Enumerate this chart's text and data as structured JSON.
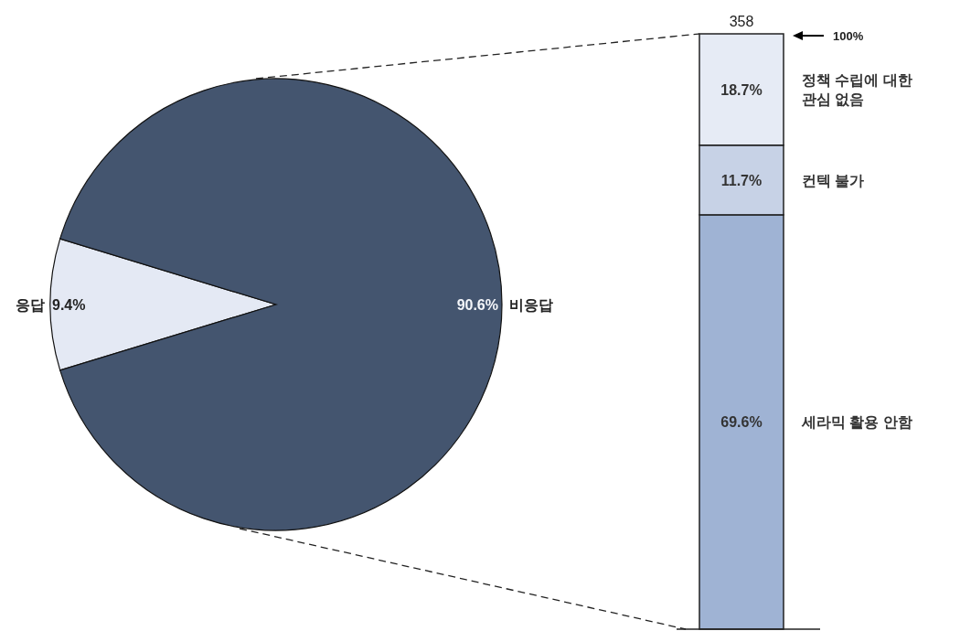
{
  "chart_data": [
    {
      "type": "pie",
      "categories": [
        "응답",
        "비응답"
      ],
      "values": [
        9.4,
        90.6
      ],
      "colors": [
        "#e4e9f4",
        "#44556f"
      ],
      "value_labels": [
        "9.4%",
        "90.6%"
      ]
    },
    {
      "type": "bar",
      "stacked": true,
      "categories": [
        null
      ],
      "annotations": [
        "358",
        "100%"
      ],
      "series": [
        {
          "name": "세라믹 활용 안함",
          "color": "#9fb3d4",
          "values": [
            69.6
          ],
          "value_labels": [
            "69.6%"
          ]
        },
        {
          "name": "컨텍 불가",
          "color": "#c7d2e6",
          "values": [
            11.7
          ],
          "value_labels": [
            "11.7%"
          ]
        },
        {
          "name": "정책 수립에 대한 관심 없음",
          "color": "#e6ebf5",
          "values": [
            18.7
          ],
          "value_labels": [
            "18.7%"
          ]
        }
      ]
    }
  ]
}
